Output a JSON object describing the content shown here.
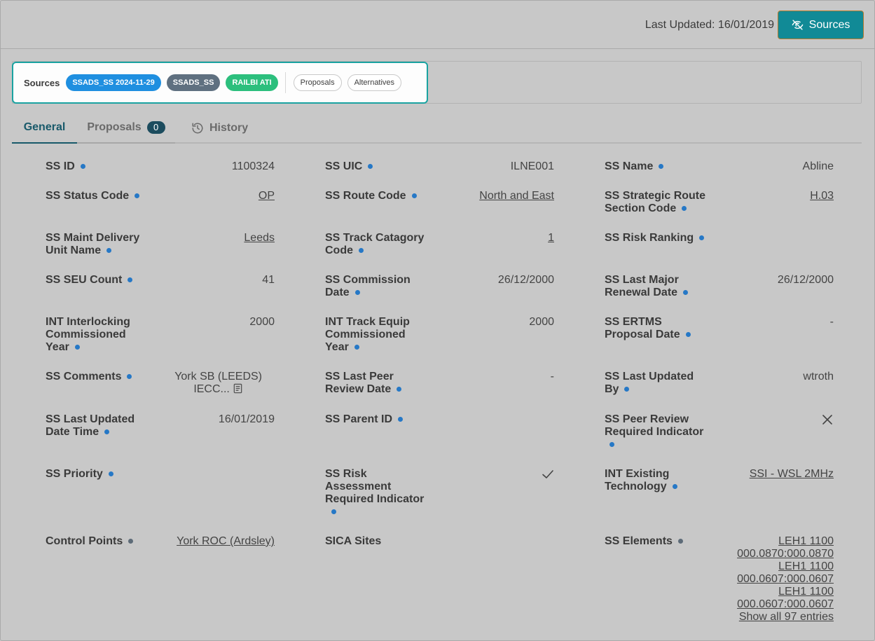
{
  "header": {
    "last_updated": "Last Updated: 16/01/2019",
    "sources_button": "Sources",
    "sources_button_icon": "eye-off-icon"
  },
  "sources_strip": {
    "label": "Sources",
    "pills": [
      "SSADS_SS 2024-11-29",
      "SSADS_SS",
      "RAILBI ATI"
    ],
    "links": [
      "Proposals",
      "Alternatives"
    ]
  },
  "tabs": {
    "general": "General",
    "proposals": "Proposals",
    "proposals_count": "0",
    "history": "History"
  },
  "fields": {
    "ss_id": {
      "label": "SS ID",
      "value": "1100324"
    },
    "ss_uic": {
      "label": "SS UIC",
      "value": "ILNE001"
    },
    "ss_name": {
      "label": "SS Name",
      "value": "Abline"
    },
    "ss_status_code": {
      "label": "SS Status Code",
      "value": "OP"
    },
    "ss_route_code": {
      "label": "SS Route Code",
      "value": "North and East"
    },
    "ss_strategic_route": {
      "label": "SS Strategic Route Section Code",
      "value": "H.03"
    },
    "ss_maint_unit": {
      "label": "SS Maint Delivery Unit Name",
      "value": "Leeds"
    },
    "ss_track_category": {
      "label": "SS Track Catagory Code",
      "value": "1"
    },
    "ss_risk_ranking": {
      "label": "SS Risk Ranking",
      "value": ""
    },
    "ss_seu_count": {
      "label": "SS SEU Count",
      "value": "41"
    },
    "ss_commission_date": {
      "label": "SS Commission Date",
      "value": "26/12/2000"
    },
    "ss_last_major_renewal": {
      "label": "SS Last Major Renewal Date",
      "value": "26/12/2000"
    },
    "int_interlocking_year": {
      "label": "INT Interlocking Commissioned Year",
      "value": "2000"
    },
    "int_track_equip_year": {
      "label": "INT Track Equip Commissioned Year",
      "value": "2000"
    },
    "ss_ertms_date": {
      "label": "SS ERTMS Proposal Date",
      "value": "-"
    },
    "ss_comments": {
      "label": "SS Comments",
      "value_line1": "York SB (LEEDS)",
      "value_line2": "IECC..."
    },
    "ss_last_peer_review": {
      "label": "SS Last Peer Review Date",
      "value": "-"
    },
    "ss_last_updated_by": {
      "label": "SS Last Updated By",
      "value": "wtroth"
    },
    "ss_last_updated_datetime": {
      "label": "SS Last Updated Date Time",
      "value": "16/01/2019"
    },
    "ss_parent_id": {
      "label": "SS Parent ID",
      "value": ""
    },
    "ss_peer_review_required": {
      "label": "SS Peer Review Required Indicator",
      "value_icon": "cross-icon"
    },
    "ss_priority": {
      "label": "SS Priority",
      "value": ""
    },
    "ss_risk_assessment_required": {
      "label": "SS Risk Assessment Required Indicator",
      "value_icon": "check-icon"
    },
    "int_existing_technology": {
      "label": "INT Existing Technology",
      "value": "SSI - WSL 2MHz"
    },
    "control_points": {
      "label": "Control Points",
      "value": "York ROC (Ardsley)"
    },
    "sica_sites": {
      "label": "SICA Sites",
      "value": ""
    },
    "ss_elements": {
      "label": "SS Elements",
      "entries": [
        "LEH1 1100",
        "000.0870:000.0870",
        "LEH1 1100",
        "000.0607:000.0607",
        "LEH1 1100",
        "000.0607:000.0607"
      ],
      "show_all": "Show all 97 entries"
    }
  },
  "colors": {
    "accent_teal": "#118a96",
    "tab_active": "#18596a",
    "info_dot": "#2678c6",
    "pill_blue": "#1f8fe0",
    "pill_gray": "#5f7080",
    "pill_green": "#2cbf7d"
  }
}
